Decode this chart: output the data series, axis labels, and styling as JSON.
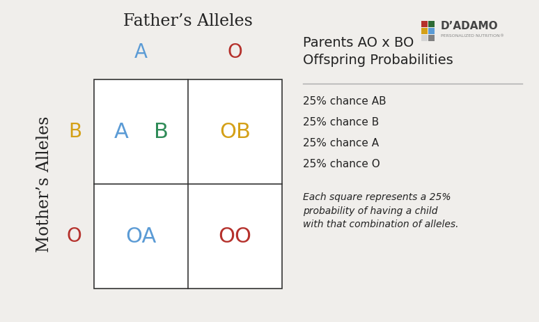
{
  "background_color": "#f0eeeb",
  "title_father": "Father’s Alleles",
  "title_mother": "Mother’s Alleles",
  "father_alleles": [
    "A",
    "O"
  ],
  "mother_alleles": [
    "B",
    "O"
  ],
  "father_allele_colors": [
    "#5b9bd5",
    "#b5312c"
  ],
  "mother_allele_colors": [
    "#d4a017",
    "#b5312c"
  ],
  "cells": [
    {
      "text": "AB",
      "colors": [
        "#2e8b57",
        "#2e8b57"
      ],
      "row": 0,
      "col": 0
    },
    {
      "text": "OB",
      "colors": [
        "#d4a017",
        "#d4a017"
      ],
      "row": 0,
      "col": 1
    },
    {
      "text": "OA",
      "colors": [
        "#5b9bd5",
        "#5b9bd5"
      ],
      "row": 1,
      "col": 0
    },
    {
      "text": "OO",
      "colors": [
        "#b5312c",
        "#b5312c"
      ],
      "row": 1,
      "col": 1
    }
  ],
  "right_title": "Parents AO x BO\nOffspring Probabilities",
  "right_bullets": [
    "25% chance AB",
    "25% chance B",
    "25% chance A",
    "25% chance O"
  ],
  "right_note": "Each square represents a 25%\nprobability of having a child\nwith that combination of alleles.",
  "logo_colors": [
    "#b5312c",
    "#2e6b35",
    "#d4a017",
    "#5b9bd5",
    "#808080",
    "#d4a017"
  ],
  "logo_text": "D’ADAMO",
  "logo_sub": "PERSONALIZED NUTRITION®"
}
